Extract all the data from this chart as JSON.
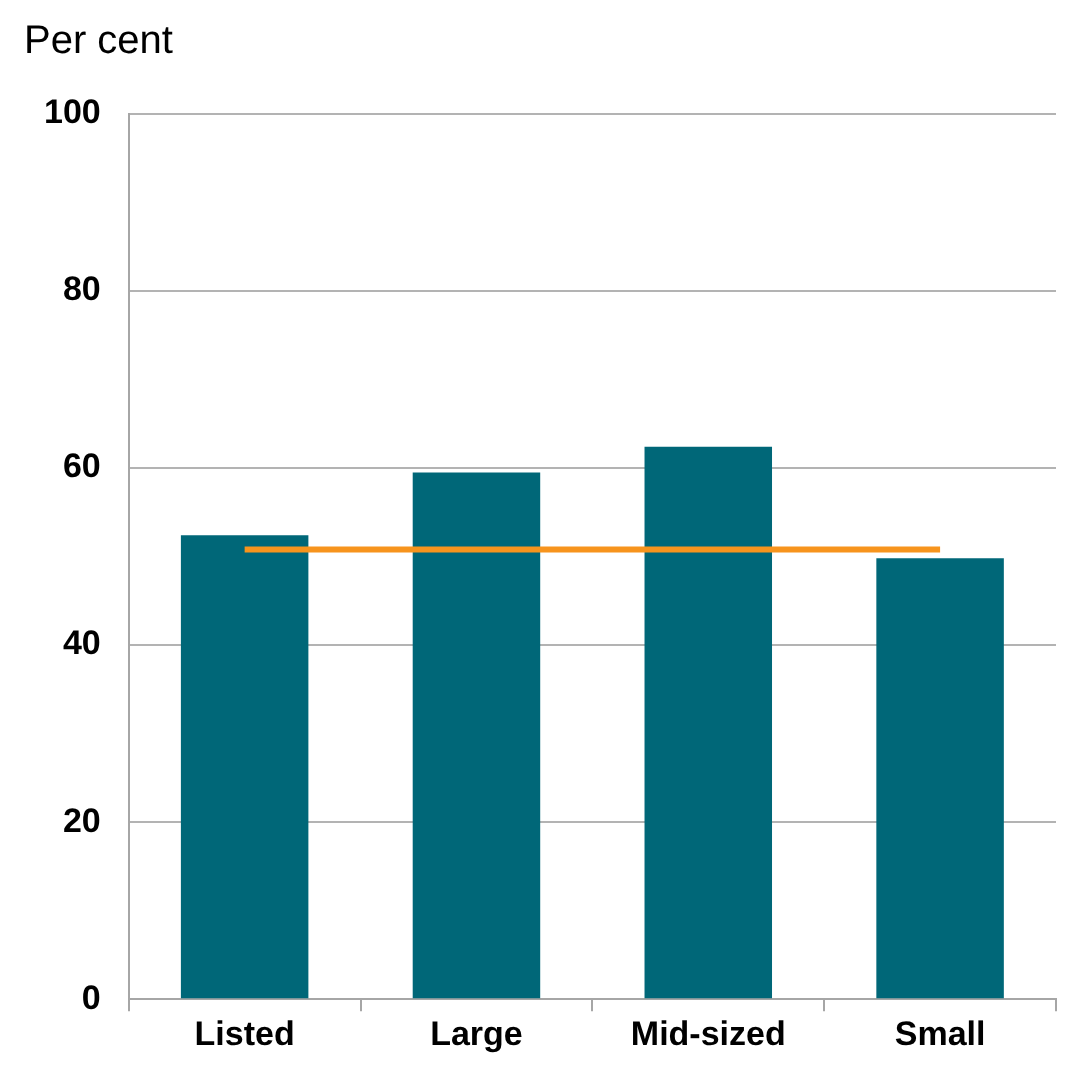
{
  "chart_data": {
    "type": "bar",
    "ylabel": "Per cent",
    "categories": [
      "Listed",
      "Large",
      "Mid-sized",
      "Small"
    ],
    "series": [
      {
        "color": "#006778",
        "values": [
          52.4,
          59.5,
          62.4,
          49.8
        ]
      },
      {
        "type": "line",
        "color": "#f7941d",
        "values": [
          50.8,
          50.8,
          50.8,
          50.8
        ]
      }
    ],
    "ylim": [
      0,
      100
    ],
    "yticks": [
      0,
      20,
      40,
      60,
      80,
      100
    ],
    "grid": "y",
    "marker": "none",
    "legend": false
  }
}
